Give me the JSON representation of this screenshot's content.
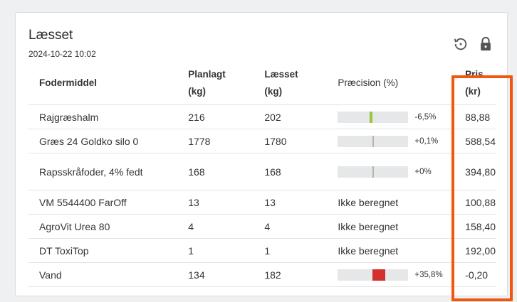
{
  "title": "Læsset",
  "timestamp": "2024-10-22 10:02",
  "icons": {
    "history": "history-icon",
    "lock": "lock-icon"
  },
  "colors": {
    "highlight": "#f2570f",
    "bar_bg": "#e5e7e8",
    "green": "#9bc53d",
    "neutral": "#b4b4b4",
    "red": "#d32f2f"
  },
  "headers": {
    "feed": "Fodermiddel",
    "planned": "Planlagt",
    "planned_unit": "(kg)",
    "loaded": "Læsset",
    "loaded_unit": "(kg)",
    "precision": "Præcision (%)",
    "price": "Pris",
    "price_unit": "(kr)"
  },
  "rows": [
    {
      "name": "Rajgræshalm",
      "planned": "216",
      "loaded": "202",
      "precision_text": "-6,5%",
      "precision_value": -6.5,
      "status": "green",
      "price": "88,88"
    },
    {
      "name": "Græs 24 Goldko silo 0",
      "planned": "1778",
      "loaded": "1780",
      "precision_text": "+0,1%",
      "precision_value": 0.1,
      "status": "neutral",
      "price": "588,54"
    },
    {
      "name": "Rapsskråfoder, 4% fedt",
      "planned": "168",
      "loaded": "168",
      "precision_text": "+0%",
      "precision_value": 0,
      "status": "neutral",
      "price": "394,80"
    },
    {
      "name": "VM 5544400 FarOff",
      "planned": "13",
      "loaded": "13",
      "precision_text": "Ikke beregnet",
      "price": "100,88"
    },
    {
      "name": "AgroVit Urea 80",
      "planned": "4",
      "loaded": "4",
      "precision_text": "Ikke beregnet",
      "price": "158,40"
    },
    {
      "name": "DT ToxiTop",
      "planned": "1",
      "loaded": "1",
      "precision_text": "Ikke beregnet",
      "price": "192,00"
    },
    {
      "name": "Vand",
      "planned": "134",
      "loaded": "182",
      "precision_text": "+35,8%",
      "precision_value": 35.8,
      "status": "red",
      "price": "-0,20"
    }
  ]
}
